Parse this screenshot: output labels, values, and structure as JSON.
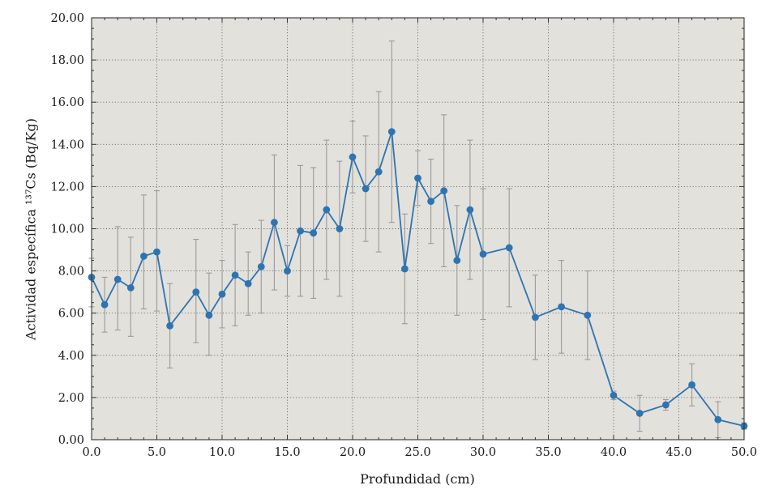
{
  "chart_data": {
    "type": "line",
    "title": "",
    "xlabel": "Profundidad (cm)",
    "ylabel": "Actividad específica ¹³⁷Cs (Bq/Kg)",
    "xlim": [
      0,
      50
    ],
    "ylim": [
      0,
      20
    ],
    "grid": true,
    "legend_position": "none",
    "x_minor_step": 1,
    "y_minor_step": 0.5,
    "x_ticks": {
      "values": [
        0,
        5,
        10,
        15,
        20,
        25,
        30,
        35,
        40,
        45,
        50
      ],
      "labels": [
        "0.0",
        "5.0",
        "10.0",
        "15.0",
        "20.0",
        "25.0",
        "30.0",
        "35.0",
        "40.0",
        "45.0",
        "50.0"
      ]
    },
    "y_ticks": {
      "values": [
        0,
        2,
        4,
        6,
        8,
        10,
        12,
        14,
        16,
        18,
        20
      ],
      "labels": [
        "0.00",
        "2.00",
        "4.00",
        "6.00",
        "8.00",
        "10.00",
        "12.00",
        "14.00",
        "16.00",
        "18.00",
        "20.00"
      ]
    },
    "series": [
      {
        "name": "¹³⁷Cs",
        "x": [
          0,
          1,
          2,
          3,
          4,
          5,
          6,
          8,
          9,
          10,
          11,
          12,
          13,
          14,
          15,
          16,
          17,
          18,
          19,
          20,
          21,
          22,
          23,
          24,
          25,
          26,
          27,
          28,
          29,
          30,
          32,
          34,
          36,
          38,
          40,
          42,
          44,
          46,
          48,
          50
        ],
        "y": [
          7.7,
          6.4,
          7.6,
          7.2,
          8.7,
          8.9,
          5.4,
          7.0,
          5.9,
          6.9,
          7.8,
          7.4,
          8.2,
          10.3,
          8.0,
          9.9,
          9.8,
          10.9,
          10.0,
          13.4,
          11.9,
          12.7,
          14.6,
          8.1,
          12.4,
          11.3,
          11.8,
          8.5,
          10.9,
          8.8,
          9.1,
          5.8,
          6.3,
          5.9,
          2.1,
          1.25,
          1.65,
          2.6,
          0.95,
          0.65
        ],
        "err_lo": [
          6.3,
          5.1,
          5.2,
          4.9,
          6.2,
          6.1,
          3.4,
          4.6,
          4.0,
          5.3,
          5.4,
          5.9,
          6.0,
          7.1,
          6.8,
          6.8,
          6.7,
          7.6,
          6.8,
          11.7,
          9.4,
          8.9,
          10.3,
          5.5,
          11.1,
          9.3,
          8.2,
          5.9,
          7.6,
          5.7,
          6.3,
          3.8,
          4.1,
          3.8,
          1.9,
          0.4,
          1.4,
          1.6,
          0.1,
          0.5
        ],
        "err_hi": [
          8.6,
          7.7,
          10.1,
          9.6,
          11.6,
          11.8,
          7.4,
          9.5,
          7.9,
          8.5,
          10.2,
          8.9,
          10.4,
          13.5,
          9.2,
          13.0,
          12.9,
          14.2,
          13.2,
          15.1,
          14.4,
          16.5,
          18.9,
          10.7,
          13.7,
          13.3,
          15.4,
          11.1,
          14.2,
          11.9,
          11.9,
          7.8,
          8.5,
          8.0,
          2.3,
          2.1,
          1.9,
          3.6,
          1.8,
          0.8
        ]
      }
    ],
    "colors": {
      "line": "#2e74b0",
      "marker": "#2e74b0",
      "error": "#9a9a9a",
      "grid": "#555555",
      "frame": "#333333",
      "plot_bg": "#e3e1dc",
      "text": "#1a1a1a"
    }
  }
}
